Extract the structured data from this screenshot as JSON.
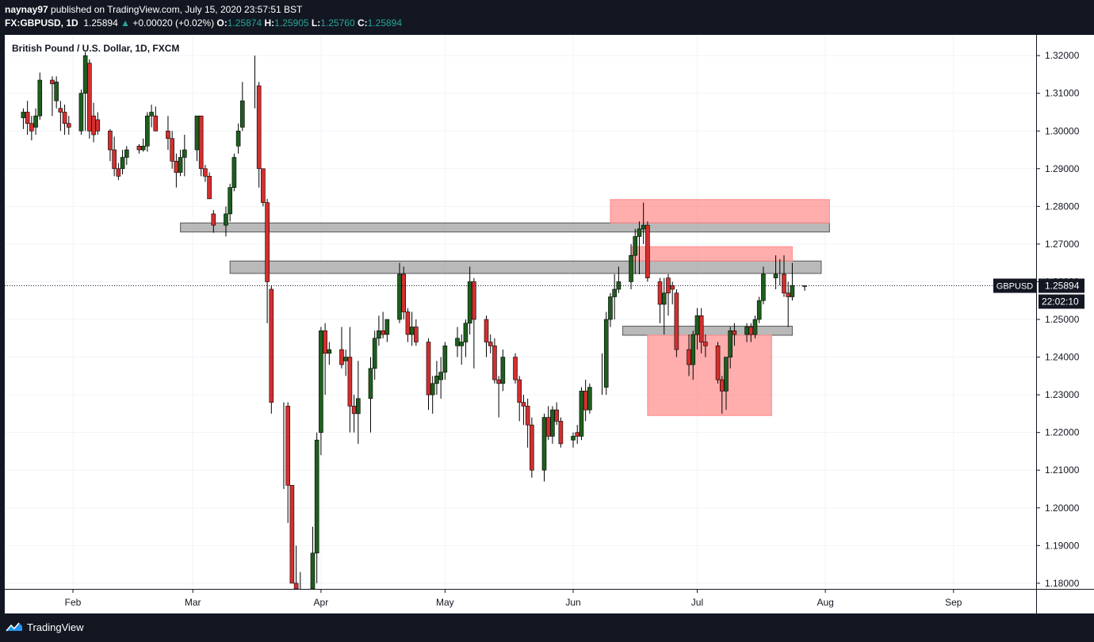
{
  "header": {
    "publisher": "naynay97",
    "published_text": "published on TradingView.com, July 15, 2020 23:57:51 BST",
    "symbol": "FX:GBPUSD, 1D",
    "last": "1.25894",
    "change_arrow": "▲",
    "change": "+0.00020 (+0.02%)",
    "o_label": "O:",
    "o_value": "1.25874",
    "h_label": "H:",
    "h_value": "1.25905",
    "l_label": "L:",
    "l_value": "1.25760",
    "c_label": "C:",
    "c_value": "1.25894"
  },
  "chart_title": "British Pound / U.S. Dollar, 1D, FXCM",
  "footer": {
    "brand": "TradingView",
    "logo_icon": "tradingview-logo-icon"
  },
  "colors": {
    "up": "#1e5e1e",
    "down": "#d32f2f",
    "grid": "#f0f3fa",
    "zone_gray": "#9e9e9e",
    "zone_red": "#ff8a8a"
  },
  "chart_data": {
    "type": "candlestick",
    "title": "British Pound / U.S. Dollar, 1D, FXCM",
    "ylim": [
      1.1785,
      1.3255
    ],
    "y_ticks": [
      "1.32000",
      "1.31000",
      "1.30000",
      "1.29000",
      "1.28000",
      "1.27000",
      "1.26000",
      "1.25000",
      "1.24000",
      "1.23000",
      "1.22000",
      "1.21000",
      "1.20000",
      "1.19000",
      "1.18000"
    ],
    "x_ticks": [
      {
        "label": "Feb",
        "date": "2020-02-01"
      },
      {
        "label": "Mar",
        "date": "2020-03-01"
      },
      {
        "label": "Apr",
        "date": "2020-04-01"
      },
      {
        "label": "May",
        "date": "2020-05-01"
      },
      {
        "label": "Jun",
        "date": "2020-06-01"
      },
      {
        "label": "Jul",
        "date": "2020-07-01"
      },
      {
        "label": "Aug",
        "date": "2020-08-01"
      },
      {
        "label": "Sep",
        "date": "2020-09-01"
      }
    ],
    "price_label": {
      "symbol": "GBPUSD",
      "value": "1.25894",
      "countdown": "22:02:10",
      "price": 1.25894
    },
    "zones": [
      {
        "color": "gray",
        "x_start": "2020-02-27",
        "x_end": "2020-08-02",
        "y_low": 1.2732,
        "y_high": 1.2756
      },
      {
        "color": "gray",
        "x_start": "2020-03-10",
        "x_end": "2020-07-31",
        "y_low": 1.2622,
        "y_high": 1.2655
      },
      {
        "color": "gray",
        "x_start": "2020-06-13",
        "x_end": "2020-07-24",
        "y_low": 1.2458,
        "y_high": 1.2482
      },
      {
        "color": "red",
        "x_start": "2020-06-10",
        "x_end": "2020-08-02",
        "y_low": 1.2756,
        "y_high": 1.2818
      },
      {
        "color": "red",
        "x_start": "2020-06-15",
        "x_end": "2020-07-24",
        "y_low": 1.2655,
        "y_high": 1.2693
      },
      {
        "color": "red",
        "x_start": "2020-06-19",
        "x_end": "2020-07-19",
        "y_low": 1.2245,
        "y_high": 1.2458
      }
    ],
    "candles": [
      {
        "date": "2020-01-20",
        "o": 1.3035,
        "h": 1.306,
        "l": 1.3005,
        "c": 1.305
      },
      {
        "date": "2020-01-21",
        "o": 1.305,
        "h": 1.308,
        "l": 1.299,
        "c": 1.302
      },
      {
        "date": "2020-01-22",
        "o": 1.302,
        "h": 1.304,
        "l": 1.2975,
        "c": 1.3
      },
      {
        "date": "2020-01-23",
        "o": 1.301,
        "h": 1.306,
        "l": 1.299,
        "c": 1.304
      },
      {
        "date": "2020-01-24",
        "o": 1.304,
        "h": 1.3155,
        "l": 1.303,
        "c": 1.3135
      },
      {
        "date": "2020-01-27",
        "o": 1.3135,
        "h": 1.3145,
        "l": 1.304,
        "c": 1.3125
      },
      {
        "date": "2020-01-28",
        "o": 1.308,
        "h": 1.3145,
        "l": 1.306,
        "c": 1.313
      },
      {
        "date": "2020-01-29",
        "o": 1.306,
        "h": 1.308,
        "l": 1.3,
        "c": 1.305
      },
      {
        "date": "2020-01-30",
        "o": 1.305,
        "h": 1.307,
        "l": 1.299,
        "c": 1.302
      },
      {
        "date": "2020-01-31",
        "o": 1.302,
        "h": 1.304,
        "l": 1.299,
        "c": 1.301
      },
      {
        "date": "2020-02-03",
        "o": 1.3,
        "h": 1.311,
        "l": 1.299,
        "c": 1.31
      },
      {
        "date": "2020-02-04",
        "o": 1.31,
        "h": 1.321,
        "l": 1.3,
        "c": 1.32
      },
      {
        "date": "2020-02-05",
        "o": 1.318,
        "h": 1.319,
        "l": 1.298,
        "c": 1.3
      },
      {
        "date": "2020-02-06",
        "o": 1.304,
        "h": 1.3075,
        "l": 1.297,
        "c": 1.299
      },
      {
        "date": "2020-02-07",
        "o": 1.303,
        "h": 1.305,
        "l": 1.299,
        "c": 1.3
      },
      {
        "date": "2020-02-10",
        "o": 1.3,
        "h": 1.3005,
        "l": 1.292,
        "c": 1.295
      },
      {
        "date": "2020-02-11",
        "o": 1.295,
        "h": 1.2985,
        "l": 1.288,
        "c": 1.29
      },
      {
        "date": "2020-02-12",
        "o": 1.29,
        "h": 1.2915,
        "l": 1.287,
        "c": 1.288
      },
      {
        "date": "2020-02-13",
        "o": 1.29,
        "h": 1.295,
        "l": 1.2885,
        "c": 1.293
      },
      {
        "date": "2020-02-14",
        "o": 1.293,
        "h": 1.296,
        "l": 1.291,
        "c": 1.295
      },
      {
        "date": "2020-02-17",
        "o": 1.296,
        "h": 1.2965,
        "l": 1.294,
        "c": 1.295
      },
      {
        "date": "2020-02-18",
        "o": 1.295,
        "h": 1.298,
        "l": 1.2945,
        "c": 1.296
      },
      {
        "date": "2020-02-19",
        "o": 1.296,
        "h": 1.305,
        "l": 1.2945,
        "c": 1.304
      },
      {
        "date": "2020-02-20",
        "o": 1.304,
        "h": 1.307,
        "l": 1.301,
        "c": 1.305
      },
      {
        "date": "2020-02-21",
        "o": 1.304,
        "h": 1.3065,
        "l": 1.3,
        "c": 1.3
      },
      {
        "date": "2020-02-24",
        "o": 1.3,
        "h": 1.304,
        "l": 1.295,
        "c": 1.298
      },
      {
        "date": "2020-02-25",
        "o": 1.298,
        "h": 1.3,
        "l": 1.29,
        "c": 1.292
      },
      {
        "date": "2020-02-26",
        "o": 1.292,
        "h": 1.294,
        "l": 1.285,
        "c": 1.289
      },
      {
        "date": "2020-02-27",
        "o": 1.289,
        "h": 1.295,
        "l": 1.288,
        "c": 1.293
      },
      {
        "date": "2020-02-28",
        "o": 1.293,
        "h": 1.299,
        "l": 1.288,
        "c": 1.295
      },
      {
        "date": "2020-03-02",
        "o": 1.295,
        "h": 1.304,
        "l": 1.292,
        "c": 1.304
      },
      {
        "date": "2020-03-03",
        "o": 1.304,
        "h": 1.304,
        "l": 1.288,
        "c": 1.29
      },
      {
        "date": "2020-03-04",
        "o": 1.29,
        "h": 1.291,
        "l": 1.2865,
        "c": 1.288
      },
      {
        "date": "2020-03-05",
        "o": 1.288,
        "h": 1.289,
        "l": 1.282,
        "c": 1.282
      },
      {
        "date": "2020-03-06",
        "o": 1.278,
        "h": 1.279,
        "l": 1.273,
        "c": 1.275
      },
      {
        "date": "2020-03-09",
        "o": 1.275,
        "h": 1.28,
        "l": 1.272,
        "c": 1.278
      },
      {
        "date": "2020-03-10",
        "o": 1.278,
        "h": 1.286,
        "l": 1.276,
        "c": 1.285
      },
      {
        "date": "2020-03-11",
        "o": 1.285,
        "h": 1.294,
        "l": 1.284,
        "c": 1.293
      },
      {
        "date": "2020-03-12",
        "o": 1.296,
        "h": 1.302,
        "l": 1.294,
        "c": 1.3
      },
      {
        "date": "2020-03-13",
        "o": 1.301,
        "h": 1.313,
        "l": 1.3,
        "c": 1.308
      },
      {
        "date": "2020-03-16",
        "o": 1.312,
        "h": 1.32,
        "l": 1.306,
        "c": 1.312
      },
      {
        "date": "2020-03-17",
        "o": 1.312,
        "h": 1.313,
        "l": 1.285,
        "c": 1.29
      },
      {
        "date": "2020-03-18",
        "o": 1.29,
        "h": 1.29,
        "l": 1.28,
        "c": 1.281
      },
      {
        "date": "2020-03-19",
        "o": 1.281,
        "h": 1.282,
        "l": 1.249,
        "c": 1.26
      },
      {
        "date": "2020-03-20",
        "o": 1.258,
        "h": 1.259,
        "l": 1.225,
        "c": 1.228
      },
      {
        "date": "2020-03-23",
        "o": 1.227,
        "h": 1.228,
        "l": 1.205,
        "c": 1.227
      },
      {
        "date": "2020-03-24",
        "o": 1.227,
        "h": 1.228,
        "l": 1.196,
        "c": 1.206
      },
      {
        "date": "2020-03-25",
        "o": 1.206,
        "h": 1.206,
        "l": 1.18,
        "c": 1.18
      },
      {
        "date": "2020-03-26",
        "o": 1.18,
        "h": 1.19,
        "l": 1.16,
        "c": 1.175
      },
      {
        "date": "2020-03-27",
        "o": 1.17,
        "h": 1.183,
        "l": 1.145,
        "c": 1.175
      },
      {
        "date": "2020-03-30",
        "o": 1.175,
        "h": 1.195,
        "l": 1.17,
        "c": 1.188
      },
      {
        "date": "2020-03-31",
        "o": 1.188,
        "h": 1.22,
        "l": 1.18,
        "c": 1.218
      },
      {
        "date": "2020-04-01",
        "o": 1.22,
        "h": 1.248,
        "l": 1.214,
        "c": 1.247
      },
      {
        "date": "2020-04-02",
        "o": 1.247,
        "h": 1.249,
        "l": 1.23,
        "c": 1.241
      },
      {
        "date": "2020-04-03",
        "o": 1.241,
        "h": 1.244,
        "l": 1.238,
        "c": 1.242
      },
      {
        "date": "2020-04-06",
        "o": 1.242,
        "h": 1.248,
        "l": 1.237,
        "c": 1.238
      },
      {
        "date": "2020-04-07",
        "o": 1.239,
        "h": 1.242,
        "l": 1.235,
        "c": 1.24
      },
      {
        "date": "2020-04-08",
        "o": 1.24,
        "h": 1.248,
        "l": 1.22,
        "c": 1.227
      },
      {
        "date": "2020-04-09",
        "o": 1.227,
        "h": 1.23,
        "l": 1.22,
        "c": 1.225
      },
      {
        "date": "2020-04-10",
        "o": 1.225,
        "h": 1.239,
        "l": 1.217,
        "c": 1.229
      },
      {
        "date": "2020-04-13",
        "o": 1.229,
        "h": 1.24,
        "l": 1.22,
        "c": 1.237
      },
      {
        "date": "2020-04-14",
        "o": 1.237,
        "h": 1.247,
        "l": 1.234,
        "c": 1.245
      },
      {
        "date": "2020-04-15",
        "o": 1.245,
        "h": 1.251,
        "l": 1.243,
        "c": 1.247
      },
      {
        "date": "2020-04-16",
        "o": 1.247,
        "h": 1.252,
        "l": 1.245,
        "c": 1.246
      },
      {
        "date": "2020-04-17",
        "o": 1.246,
        "h": 1.25,
        "l": 1.244,
        "c": 1.25
      },
      {
        "date": "2020-04-20",
        "o": 1.25,
        "h": 1.265,
        "l": 1.249,
        "c": 1.262
      },
      {
        "date": "2020-04-21",
        "o": 1.262,
        "h": 1.264,
        "l": 1.25,
        "c": 1.252
      },
      {
        "date": "2020-04-22",
        "o": 1.252,
        "h": 1.253,
        "l": 1.244,
        "c": 1.246
      },
      {
        "date": "2020-04-23",
        "o": 1.246,
        "h": 1.252,
        "l": 1.243,
        "c": 1.248
      },
      {
        "date": "2020-04-24",
        "o": 1.248,
        "h": 1.25,
        "l": 1.243,
        "c": 1.244
      },
      {
        "date": "2020-04-27",
        "o": 1.244,
        "h": 1.245,
        "l": 1.226,
        "c": 1.23
      },
      {
        "date": "2020-04-28",
        "o": 1.23,
        "h": 1.235,
        "l": 1.225,
        "c": 1.233
      },
      {
        "date": "2020-04-29",
        "o": 1.233,
        "h": 1.239,
        "l": 1.23,
        "c": 1.235
      },
      {
        "date": "2020-04-30",
        "o": 1.234,
        "h": 1.24,
        "l": 1.229,
        "c": 1.236
      },
      {
        "date": "2020-05-01",
        "o": 1.236,
        "h": 1.244,
        "l": 1.234,
        "c": 1.243
      },
      {
        "date": "2020-05-04",
        "o": 1.243,
        "h": 1.248,
        "l": 1.24,
        "c": 1.245
      },
      {
        "date": "2020-05-05",
        "o": 1.243,
        "h": 1.246,
        "l": 1.238,
        "c": 1.244
      },
      {
        "date": "2020-05-06",
        "o": 1.244,
        "h": 1.25,
        "l": 1.24,
        "c": 1.249
      },
      {
        "date": "2020-05-07",
        "o": 1.249,
        "h": 1.264,
        "l": 1.246,
        "c": 1.26
      },
      {
        "date": "2020-05-08",
        "o": 1.26,
        "h": 1.261,
        "l": 1.237,
        "c": 1.25
      },
      {
        "date": "2020-05-11",
        "o": 1.25,
        "h": 1.251,
        "l": 1.24,
        "c": 1.244
      },
      {
        "date": "2020-05-12",
        "o": 1.244,
        "h": 1.246,
        "l": 1.241,
        "c": 1.243
      },
      {
        "date": "2020-05-13",
        "o": 1.243,
        "h": 1.245,
        "l": 1.233,
        "c": 1.234
      },
      {
        "date": "2020-05-14",
        "o": 1.234,
        "h": 1.235,
        "l": 1.224,
        "c": 1.233
      },
      {
        "date": "2020-05-15",
        "o": 1.233,
        "h": 1.242,
        "l": 1.231,
        "c": 1.24
      },
      {
        "date": "2020-05-18",
        "o": 1.24,
        "h": 1.241,
        "l": 1.233,
        "c": 1.234
      },
      {
        "date": "2020-05-19",
        "o": 1.234,
        "h": 1.235,
        "l": 1.223,
        "c": 1.228
      },
      {
        "date": "2020-05-20",
        "o": 1.228,
        "h": 1.23,
        "l": 1.222,
        "c": 1.227
      },
      {
        "date": "2020-05-21",
        "o": 1.227,
        "h": 1.229,
        "l": 1.216,
        "c": 1.222
      },
      {
        "date": "2020-05-22",
        "o": 1.222,
        "h": 1.224,
        "l": 1.208,
        "c": 1.21
      },
      {
        "date": "2020-05-25",
        "o": 1.21,
        "h": 1.225,
        "l": 1.207,
        "c": 1.224
      },
      {
        "date": "2020-05-26",
        "o": 1.224,
        "h": 1.227,
        "l": 1.218,
        "c": 1.219
      },
      {
        "date": "2020-05-27",
        "o": 1.219,
        "h": 1.227,
        "l": 1.217,
        "c": 1.226
      },
      {
        "date": "2020-05-28",
        "o": 1.226,
        "h": 1.228,
        "l": 1.222,
        "c": 1.223
      },
      {
        "date": "2020-05-29",
        "o": 1.223,
        "h": 1.224,
        "l": 1.216,
        "c": 1.217
      },
      {
        "date": "2020-06-01",
        "o": 1.218,
        "h": 1.22,
        "l": 1.216,
        "c": 1.219
      },
      {
        "date": "2020-06-02",
        "o": 1.22,
        "h": 1.222,
        "l": 1.217,
        "c": 1.219
      },
      {
        "date": "2020-06-03",
        "o": 1.219,
        "h": 1.232,
        "l": 1.218,
        "c": 1.231
      },
      {
        "date": "2020-06-04",
        "o": 1.231,
        "h": 1.234,
        "l": 1.223,
        "c": 1.226
      },
      {
        "date": "2020-06-05",
        "o": 1.226,
        "h": 1.233,
        "l": 1.225,
        "c": 1.232
      },
      {
        "date": "2020-06-08",
        "o": 1.232,
        "h": 1.241,
        "l": 1.23,
        "c": 1.232
      },
      {
        "date": "2020-06-09",
        "o": 1.232,
        "h": 1.252,
        "l": 1.23,
        "c": 1.25
      },
      {
        "date": "2020-06-10",
        "o": 1.25,
        "h": 1.257,
        "l": 1.248,
        "c": 1.256
      },
      {
        "date": "2020-06-11",
        "o": 1.256,
        "h": 1.262,
        "l": 1.25,
        "c": 1.258
      },
      {
        "date": "2020-06-12",
        "o": 1.258,
        "h": 1.264,
        "l": 1.257,
        "c": 1.26
      },
      {
        "date": "2020-06-15",
        "o": 1.26,
        "h": 1.27,
        "l": 1.258,
        "c": 1.267
      },
      {
        "date": "2020-06-16",
        "o": 1.267,
        "h": 1.274,
        "l": 1.262,
        "c": 1.272
      },
      {
        "date": "2020-06-17",
        "o": 1.272,
        "h": 1.276,
        "l": 1.262,
        "c": 1.274
      },
      {
        "date": "2020-06-18",
        "o": 1.274,
        "h": 1.281,
        "l": 1.27,
        "c": 1.275
      },
      {
        "date": "2020-06-19",
        "o": 1.275,
        "h": 1.276,
        "l": 1.26,
        "c": 1.261
      },
      {
        "date": "2020-06-22",
        "o": 1.26,
        "h": 1.261,
        "l": 1.249,
        "c": 1.254
      },
      {
        "date": "2020-06-23",
        "o": 1.254,
        "h": 1.261,
        "l": 1.246,
        "c": 1.257
      },
      {
        "date": "2020-06-24",
        "o": 1.261,
        "h": 1.262,
        "l": 1.251,
        "c": 1.257
      },
      {
        "date": "2020-06-25",
        "o": 1.259,
        "h": 1.26,
        "l": 1.254,
        "c": 1.258
      },
      {
        "date": "2020-06-26",
        "o": 1.257,
        "h": 1.258,
        "l": 1.24,
        "c": 1.242
      },
      {
        "date": "2020-06-29",
        "o": 1.242,
        "h": 1.246,
        "l": 1.235,
        "c": 1.238
      },
      {
        "date": "2020-06-30",
        "o": 1.238,
        "h": 1.247,
        "l": 1.234,
        "c": 1.246
      },
      {
        "date": "2020-07-01",
        "o": 1.246,
        "h": 1.253,
        "l": 1.242,
        "c": 1.251
      },
      {
        "date": "2020-07-02",
        "o": 1.251,
        "h": 1.253,
        "l": 1.241,
        "c": 1.244
      },
      {
        "date": "2020-07-03",
        "o": 1.244,
        "h": 1.246,
        "l": 1.24,
        "c": 1.243
      },
      {
        "date": "2020-07-06",
        "o": 1.243,
        "h": 1.244,
        "l": 1.233,
        "c": 1.234
      },
      {
        "date": "2020-07-07",
        "o": 1.234,
        "h": 1.235,
        "l": 1.225,
        "c": 1.231
      },
      {
        "date": "2020-07-08",
        "o": 1.231,
        "h": 1.24,
        "l": 1.226,
        "c": 1.24
      },
      {
        "date": "2020-07-09",
        "o": 1.24,
        "h": 1.248,
        "l": 1.237,
        "c": 1.247
      },
      {
        "date": "2020-07-10",
        "o": 1.247,
        "h": 1.249,
        "l": 1.243,
        "c": 1.246
      },
      {
        "date": "2020-07-13",
        "o": 1.246,
        "h": 1.249,
        "l": 1.244,
        "c": 1.248
      },
      {
        "date": "2020-07-14",
        "o": 1.248,
        "h": 1.249,
        "l": 1.244,
        "c": 1.246
      },
      {
        "date": "2020-07-15",
        "o": 1.246,
        "h": 1.251,
        "l": 1.245,
        "c": 1.25
      },
      {
        "date": "2020-07-16",
        "o": 1.25,
        "h": 1.256,
        "l": 1.249,
        "c": 1.255
      },
      {
        "date": "2020-07-17",
        "o": 1.255,
        "h": 1.264,
        "l": 1.254,
        "c": 1.262
      },
      {
        "date": "2020-07-20",
        "o": 1.261,
        "h": 1.267,
        "l": 1.258,
        "c": 1.262
      },
      {
        "date": "2020-07-21",
        "o": 1.262,
        "h": 1.266,
        "l": 1.259,
        "c": 1.262
      },
      {
        "date": "2020-07-22",
        "o": 1.262,
        "h": 1.267,
        "l": 1.256,
        "c": 1.257
      },
      {
        "date": "2020-07-23",
        "o": 1.257,
        "h": 1.26,
        "l": 1.248,
        "c": 1.256
      },
      {
        "date": "2020-07-24",
        "o": 1.256,
        "h": 1.265,
        "l": 1.255,
        "c": 1.259
      },
      {
        "date": "2020-07-27",
        "o": 1.25874,
        "h": 1.25905,
        "l": 1.2576,
        "c": 1.25894
      }
    ]
  }
}
